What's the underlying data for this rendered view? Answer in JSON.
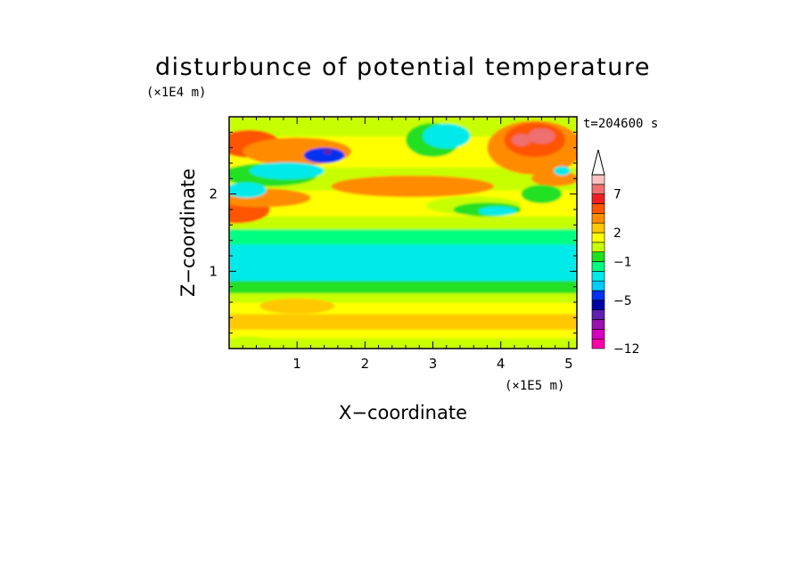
{
  "chart_data": {
    "type": "heatmap",
    "title": "disturbunce of potential temperature",
    "time_label": "t=204600 s",
    "xlabel": "X−coordinate",
    "ylabel": "Z−coordinate",
    "x_scale_label": "(×1E5 m)",
    "y_scale_label": "(×1E4 m)",
    "xlim": [
      0,
      5.12
    ],
    "ylim": [
      0,
      3.0
    ],
    "x_ticks": [
      1,
      2,
      3,
      4,
      5
    ],
    "x_tick_labels": [
      "1",
      "2",
      "3",
      "4",
      "5"
    ],
    "y_ticks": [
      1,
      2
    ],
    "y_tick_labels": [
      "1",
      "2"
    ],
    "colorbar": {
      "levels": [
        -12,
        -11,
        -10,
        -8,
        -6,
        -5,
        -4,
        -3,
        -2,
        -1,
        0,
        1,
        2,
        3,
        4,
        5,
        7,
        8,
        9
      ],
      "labels": [
        {
          "value": -12,
          "text": "−12"
        },
        {
          "value": -5,
          "text": "−5"
        },
        {
          "value": -1,
          "text": "−1"
        },
        {
          "value": 2,
          "text": "2"
        },
        {
          "value": 7,
          "text": "7"
        }
      ],
      "colors": [
        "#ff00aa",
        "#d800c0",
        "#9a10b0",
        "#6020b0",
        "#0000a8",
        "#0030f0",
        "#00ccff",
        "#00eaea",
        "#00ff80",
        "#20e020",
        "#c8ff00",
        "#ffff00",
        "#ffc800",
        "#ff8c00",
        "#ff5500",
        "#f02020",
        "#f07070",
        "#fcc0c0"
      ],
      "extend": "max"
    },
    "bands": [
      {
        "z": [
          0.0,
          0.14
        ],
        "value": 0.5
      },
      {
        "z": [
          0.14,
          0.25
        ],
        "value": 1.5
      },
      {
        "z": [
          0.25,
          0.45
        ],
        "value": 2.5
      },
      {
        "z": [
          0.45,
          0.6
        ],
        "value": 1.5
      },
      {
        "z": [
          0.6,
          0.72
        ],
        "value": 0.5
      },
      {
        "z": [
          0.72,
          0.88
        ],
        "value": -0.5
      },
      {
        "z": [
          0.88,
          1.35
        ],
        "value": -2.5
      },
      {
        "z": [
          1.35,
          1.55
        ],
        "value": -1.5
      },
      {
        "z": [
          1.55,
          1.72
        ],
        "value": 0.5
      },
      {
        "z": [
          1.72,
          2.05
        ],
        "value": 1.5
      },
      {
        "z": [
          2.05,
          2.35
        ],
        "value": 0.5
      },
      {
        "z": [
          2.35,
          2.75
        ],
        "value": 1.5
      },
      {
        "z": [
          2.75,
          3.0
        ],
        "value": 0.5
      }
    ],
    "blobs": [
      {
        "x": 0.1,
        "z": 1.8,
        "rx": 0.5,
        "rz": 0.18,
        "value": 4.5
      },
      {
        "x": 0.5,
        "z": 1.95,
        "rx": 0.7,
        "rz": 0.12,
        "value": 3.5
      },
      {
        "x": 0.3,
        "z": 2.65,
        "rx": 0.45,
        "rz": 0.18,
        "value": 4.5
      },
      {
        "x": 1.0,
        "z": 2.55,
        "rx": 0.8,
        "rz": 0.18,
        "value": 3.5
      },
      {
        "x": 0.6,
        "z": 2.25,
        "rx": 0.7,
        "rz": 0.15,
        "value": -0.5
      },
      {
        "x": 0.85,
        "z": 2.3,
        "rx": 0.55,
        "rz": 0.11,
        "value": -2.5
      },
      {
        "x": 0.25,
        "z": 2.05,
        "rx": 0.3,
        "rz": 0.1,
        "value": -2.5
      },
      {
        "x": 1.4,
        "z": 2.5,
        "rx": 0.3,
        "rz": 0.1,
        "value": -4.5
      },
      {
        "x": 1.45,
        "z": 2.55,
        "rx": 0.06,
        "rz": 0.04,
        "value": -7
      },
      {
        "x": 3.0,
        "z": 2.7,
        "rx": 0.4,
        "rz": 0.22,
        "value": -0.5
      },
      {
        "x": 3.2,
        "z": 2.75,
        "rx": 0.35,
        "rz": 0.16,
        "value": -2.5
      },
      {
        "x": 3.6,
        "z": 1.85,
        "rx": 0.7,
        "rz": 0.12,
        "value": 0.5
      },
      {
        "x": 3.8,
        "z": 1.8,
        "rx": 0.5,
        "rz": 0.09,
        "value": -0.5
      },
      {
        "x": 3.95,
        "z": 1.78,
        "rx": 0.28,
        "rz": 0.06,
        "value": -2.5
      },
      {
        "x": 2.7,
        "z": 2.1,
        "rx": 1.2,
        "rz": 0.14,
        "value": 3.5
      },
      {
        "x": 4.5,
        "z": 2.6,
        "rx": 0.7,
        "rz": 0.35,
        "value": 3.5
      },
      {
        "x": 4.5,
        "z": 2.7,
        "rx": 0.45,
        "rz": 0.22,
        "value": 4.5
      },
      {
        "x": 4.6,
        "z": 2.75,
        "rx": 0.2,
        "rz": 0.1,
        "value": 7.5
      },
      {
        "x": 4.3,
        "z": 2.7,
        "rx": 0.14,
        "rz": 0.08,
        "value": 7.5
      },
      {
        "x": 4.8,
        "z": 2.2,
        "rx": 0.35,
        "rz": 0.1,
        "value": 3.5
      },
      {
        "x": 4.6,
        "z": 2.0,
        "rx": 0.3,
        "rz": 0.12,
        "value": -0.5
      },
      {
        "x": 4.9,
        "z": 2.3,
        "rx": 0.12,
        "rz": 0.06,
        "value": -2.5
      },
      {
        "x": 1.0,
        "z": 0.55,
        "rx": 0.55,
        "rz": 0.1,
        "value": 2.5
      },
      {
        "x": 0.3,
        "z": 0.1,
        "rx": 0.3,
        "rz": 0.06,
        "value": 0.5
      }
    ]
  }
}
